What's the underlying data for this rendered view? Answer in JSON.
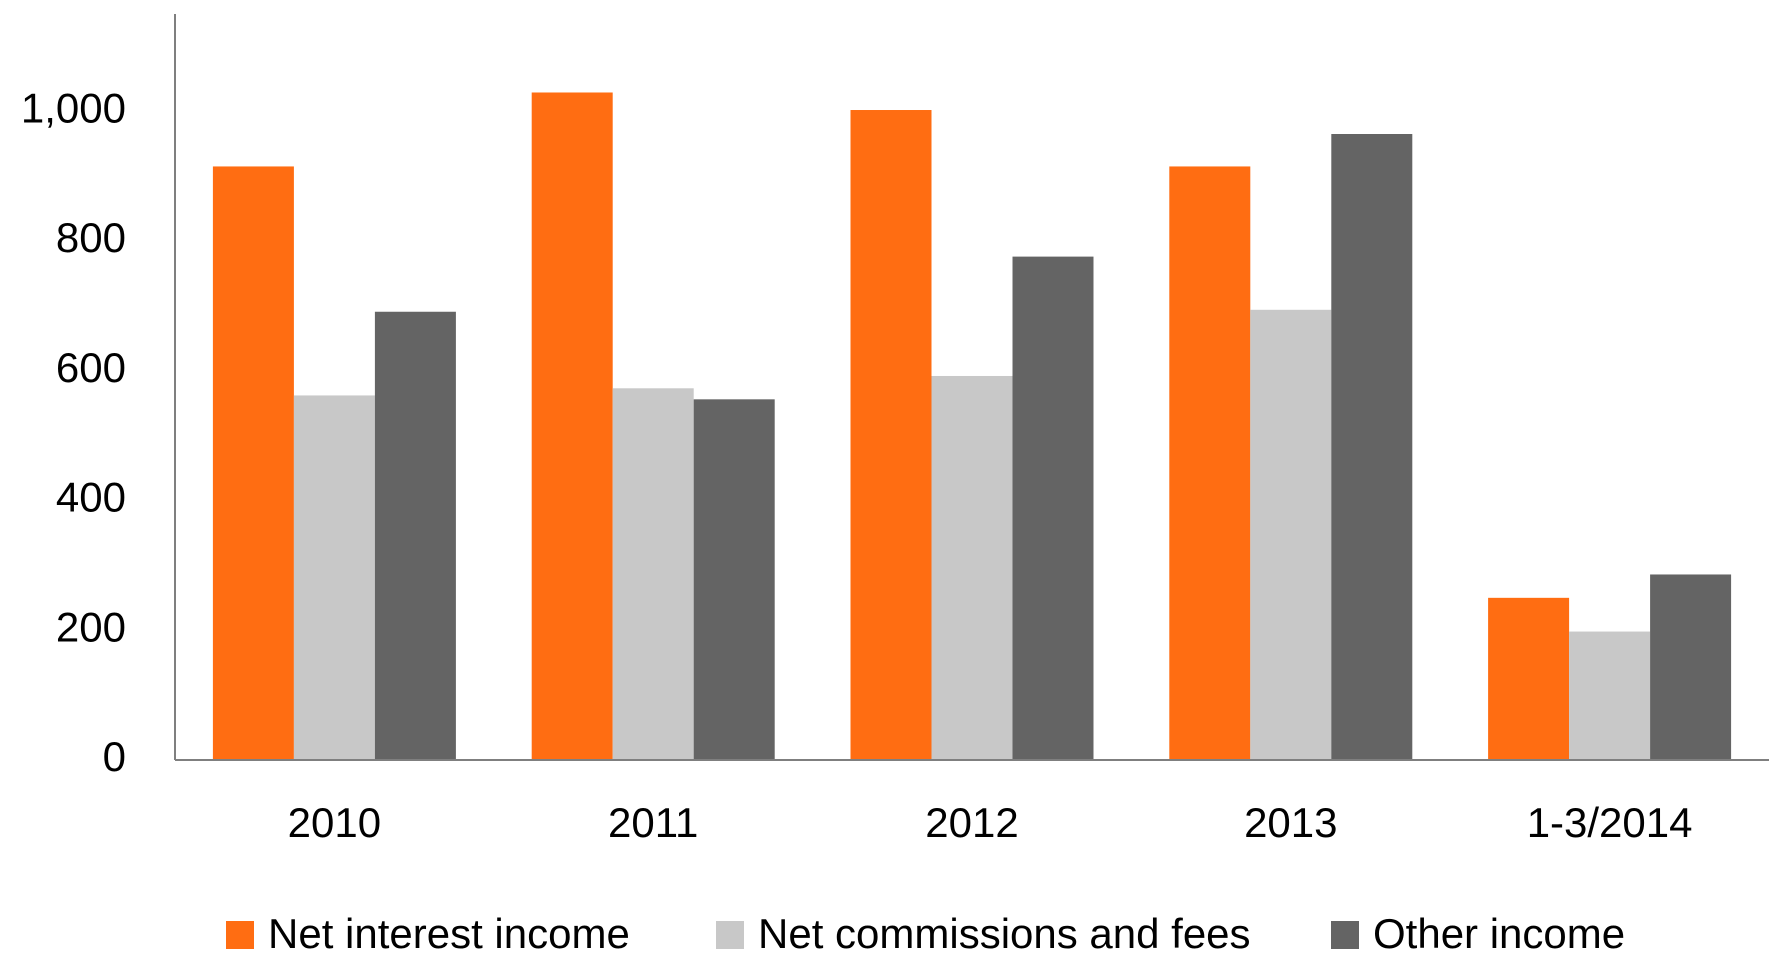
{
  "chart_data": {
    "type": "bar",
    "categories": [
      "2010",
      "2011",
      "2012",
      "2013",
      "1-3/2014"
    ],
    "series": [
      {
        "name": "Net interest income",
        "color": "#ff6d12",
        "values": [
          915,
          1029,
          1002,
          915,
          250
        ]
      },
      {
        "name": "Net commissions and fees",
        "color": "#c8c8c8",
        "values": [
          562,
          573,
          592,
          694,
          198
        ]
      },
      {
        "name": "Other income",
        "color": "#646464",
        "values": [
          691,
          556,
          776,
          965,
          286
        ]
      }
    ],
    "ylim": [
      0,
      1150
    ],
    "yticks": [
      0,
      200,
      400,
      600,
      800,
      {
        "value": 1000,
        "label": "1,000"
      }
    ],
    "grid": false,
    "legend": "bottom"
  }
}
